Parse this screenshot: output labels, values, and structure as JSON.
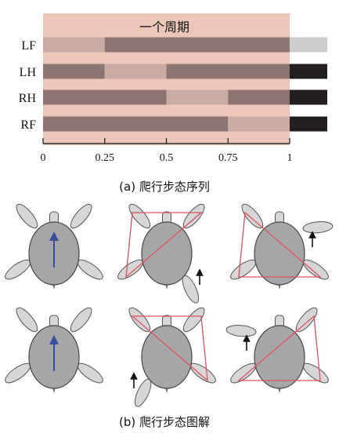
{
  "chart_data": {
    "type": "bar",
    "title": "一个周期",
    "xlabel": "",
    "ylabel": "",
    "xlim": [
      0,
      1
    ],
    "x_ticks": [
      "0",
      "0.25",
      "0.5",
      "0.75",
      "1"
    ],
    "legs": [
      "LF",
      "LH",
      "RH",
      "RF"
    ],
    "series": [
      {
        "name": "LF",
        "segments": [
          {
            "start": 0,
            "end": 0.25,
            "state": "swing"
          },
          {
            "start": 0.25,
            "end": 1,
            "state": "stance"
          }
        ]
      },
      {
        "name": "LH",
        "segments": [
          {
            "start": 0,
            "end": 0.25,
            "state": "stance"
          },
          {
            "start": 0.25,
            "end": 0.5,
            "state": "swing"
          },
          {
            "start": 0.5,
            "end": 1,
            "state": "stance"
          }
        ]
      },
      {
        "name": "RH",
        "segments": [
          {
            "start": 0,
            "end": 0.5,
            "state": "stance"
          },
          {
            "start": 0.5,
            "end": 0.75,
            "state": "swing"
          },
          {
            "start": 0.75,
            "end": 1,
            "state": "stance"
          }
        ]
      },
      {
        "name": "RF",
        "segments": [
          {
            "start": 0,
            "end": 0.75,
            "state": "stance"
          },
          {
            "start": 0.75,
            "end": 1,
            "state": "swing"
          }
        ]
      }
    ],
    "next_cycle_state": [
      "swing",
      "stance",
      "stance",
      "stance"
    ]
  },
  "captions": {
    "a": "(a) 爬行步态序列",
    "b": "(b) 爬行步态图解"
  },
  "diagram": {
    "panels": [
      {
        "swing": null,
        "arrow": "center"
      },
      {
        "swing": "RH",
        "arrow": "side"
      },
      {
        "swing": "RF",
        "arrow": "side"
      },
      {
        "swing": null,
        "arrow": "center"
      },
      {
        "swing": "LH",
        "arrow": "side"
      },
      {
        "swing": "LF",
        "arrow": "side"
      }
    ]
  },
  "colors": {
    "cycle_bg": "#ecc7b8",
    "stance": "#8c7570",
    "swing": "#c9ada2",
    "next_stance": "#231f20",
    "next_swing": "#cccccc",
    "body": "#a6a6a8",
    "limb": "#d6d6d8",
    "support_polygon": "#e0505a",
    "heading": "#3a4fa0"
  }
}
